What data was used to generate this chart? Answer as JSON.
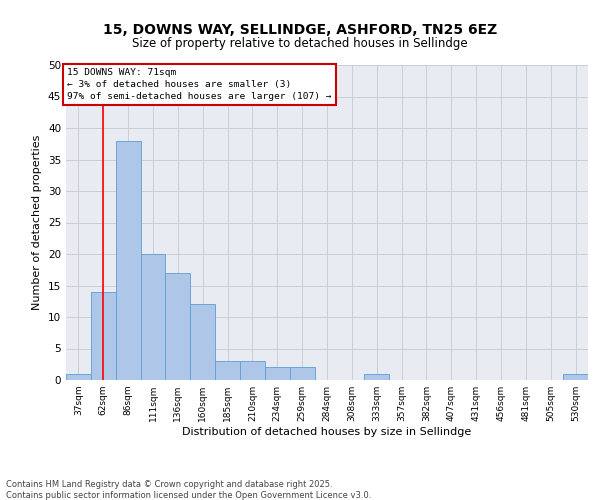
{
  "title_line1": "15, DOWNS WAY, SELLINDGE, ASHFORD, TN25 6EZ",
  "title_line2": "Size of property relative to detached houses in Sellindge",
  "xlabel": "Distribution of detached houses by size in Sellindge",
  "ylabel": "Number of detached properties",
  "categories": [
    "37sqm",
    "62sqm",
    "86sqm",
    "111sqm",
    "136sqm",
    "160sqm",
    "185sqm",
    "210sqm",
    "234sqm",
    "259sqm",
    "284sqm",
    "308sqm",
    "333sqm",
    "357sqm",
    "382sqm",
    "407sqm",
    "431sqm",
    "456sqm",
    "481sqm",
    "505sqm",
    "530sqm"
  ],
  "values": [
    1,
    14,
    38,
    20,
    17,
    12,
    3,
    3,
    2,
    2,
    0,
    0,
    1,
    0,
    0,
    0,
    0,
    0,
    0,
    0,
    1
  ],
  "bar_color": "#aec6e8",
  "bar_edge_color": "#5a9fd4",
  "grid_color": "#c8cfd8",
  "bg_color": "#e8ecf2",
  "red_line_x": 1.0,
  "annotation_title": "15 DOWNS WAY: 71sqm",
  "annotation_line2": "← 3% of detached houses are smaller (3)",
  "annotation_line3": "97% of semi-detached houses are larger (107) →",
  "annotation_box_color": "#cc0000",
  "footer_line1": "Contains HM Land Registry data © Crown copyright and database right 2025.",
  "footer_line2": "Contains public sector information licensed under the Open Government Licence v3.0.",
  "ylim": [
    0,
    50
  ],
  "yticks": [
    0,
    5,
    10,
    15,
    20,
    25,
    30,
    35,
    40,
    45,
    50
  ]
}
